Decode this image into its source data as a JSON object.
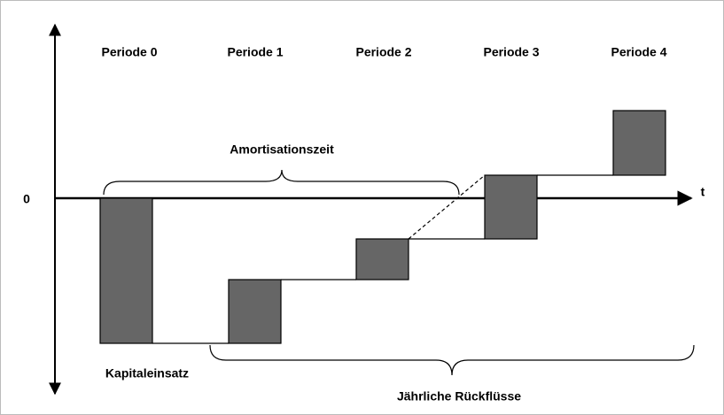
{
  "axis": {
    "zero": "0",
    "t": "t"
  },
  "periods": [
    "Periode 0",
    "Periode 1",
    "Periode 2",
    "Periode 3",
    "Periode 4"
  ],
  "braces": {
    "top": "Amortisationszeit",
    "bottom": "Jährliche Rückflüsse"
  },
  "investment": "Kapitaleinsatz"
}
